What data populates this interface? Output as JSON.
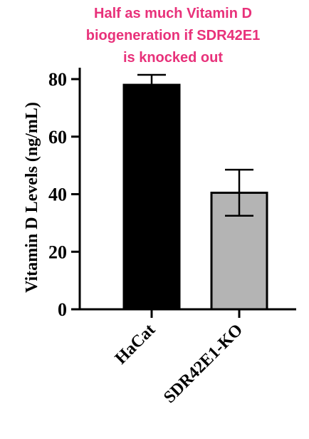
{
  "chart_data": {
    "type": "bar",
    "title_lines": [
      "Half as much Vitamin D",
      "biogeneration if  SDR42E1",
      "is knocked out"
    ],
    "title_color": "#e8317a",
    "ylabel": "Vitamin D Levels (ng/mL)",
    "xlabel": "",
    "ylim": [
      0,
      85
    ],
    "yticks": [
      0,
      20,
      40,
      60,
      80
    ],
    "categories": [
      "HaCat",
      "SDR42E1-KO"
    ],
    "values": [
      78,
      40.5
    ],
    "errors": [
      3.5,
      8
    ],
    "bar_colors": [
      "#000000",
      "#b4b4b4"
    ],
    "grid": false
  }
}
